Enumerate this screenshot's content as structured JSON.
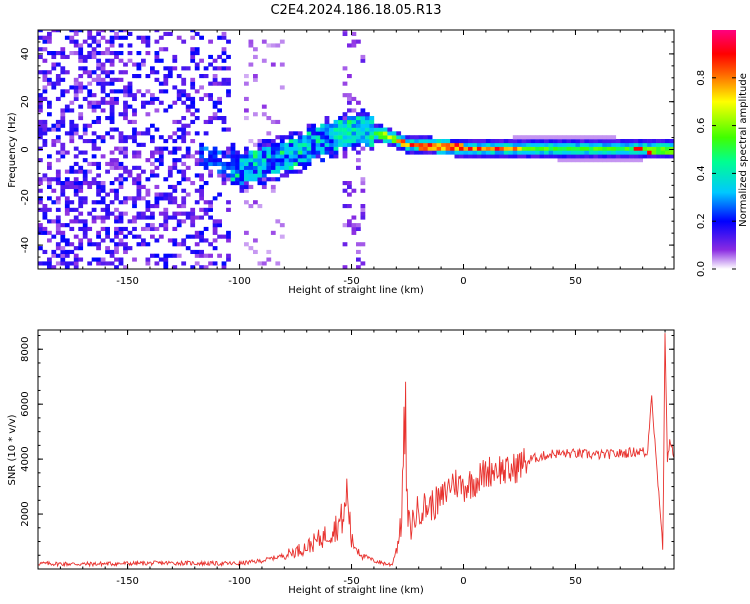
{
  "chart_data": [
    {
      "type": "heatmap",
      "title": "C2E4.2024.186.18.05.R13",
      "xlabel": "Height of straight line (km)",
      "ylabel": "Frequency (Hz)",
      "xlim": [
        -190,
        94
      ],
      "ylim": [
        -50,
        50
      ],
      "x_ticks": [
        -150,
        -100,
        -50,
        0,
        50
      ],
      "y_ticks": [
        -40,
        -20,
        0,
        20,
        40
      ],
      "colorbar": {
        "label": "Normalized spectral amplitude",
        "range": [
          0.0,
          1.0
        ],
        "ticks": [
          0.0,
          0.2,
          0.4,
          0.6,
          0.8
        ]
      },
      "ridge_frequency_hz": [
        {
          "x": -115,
          "y": -4
        },
        {
          "x": -100,
          "y": -9
        },
        {
          "x": -90,
          "y": -6
        },
        {
          "x": -75,
          "y": -2
        },
        {
          "x": -65,
          "y": 3
        },
        {
          "x": -55,
          "y": 6
        },
        {
          "x": -47,
          "y": 8
        },
        {
          "x": -40,
          "y": 6
        },
        {
          "x": -35,
          "y": 5
        },
        {
          "x": -25,
          "y": 1
        },
        {
          "x": 0,
          "y": 0
        },
        {
          "x": 30,
          "y": 0
        },
        {
          "x": 60,
          "y": -0.5
        },
        {
          "x": 94,
          "y": -1
        }
      ],
      "grid": false,
      "legend": "colorbar-right"
    },
    {
      "type": "line",
      "xlabel": "Height of straight line (km)",
      "ylabel": "SNR (10 * v/v)",
      "xlim": [
        -190,
        94
      ],
      "ylim": [
        0,
        8700
      ],
      "x_ticks": [
        -150,
        -100,
        -50,
        0,
        50
      ],
      "y_ticks": [
        2000,
        4000,
        6000,
        8000
      ],
      "series": [
        {
          "color": "#e8322e",
          "x": [
            -190,
            -170,
            -150,
            -130,
            -110,
            -100,
            -90,
            -80,
            -70,
            -62,
            -56,
            -53,
            -52,
            -50,
            -45,
            -40,
            -35,
            -32,
            -30,
            -28,
            -26,
            -25,
            -24,
            -20,
            -15,
            -10,
            -5,
            0,
            5,
            10,
            15,
            20,
            25,
            30,
            35,
            40,
            50,
            60,
            70,
            75,
            80,
            82,
            84,
            86,
            88,
            89,
            90,
            91,
            92,
            94
          ],
          "y": [
            200,
            180,
            200,
            220,
            200,
            200,
            300,
            500,
            800,
            1200,
            1600,
            2000,
            2900,
            1000,
            500,
            300,
            200,
            150,
            700,
            1500,
            5700,
            1800,
            1500,
            2200,
            2300,
            2500,
            3200,
            3000,
            3200,
            3500,
            3700,
            3500,
            3800,
            4000,
            4100,
            4200,
            4200,
            4150,
            4200,
            4250,
            4300,
            4100,
            6400,
            4000,
            2000,
            700,
            8700,
            4000,
            4600,
            4200
          ]
        }
      ],
      "grid": false
    }
  ]
}
